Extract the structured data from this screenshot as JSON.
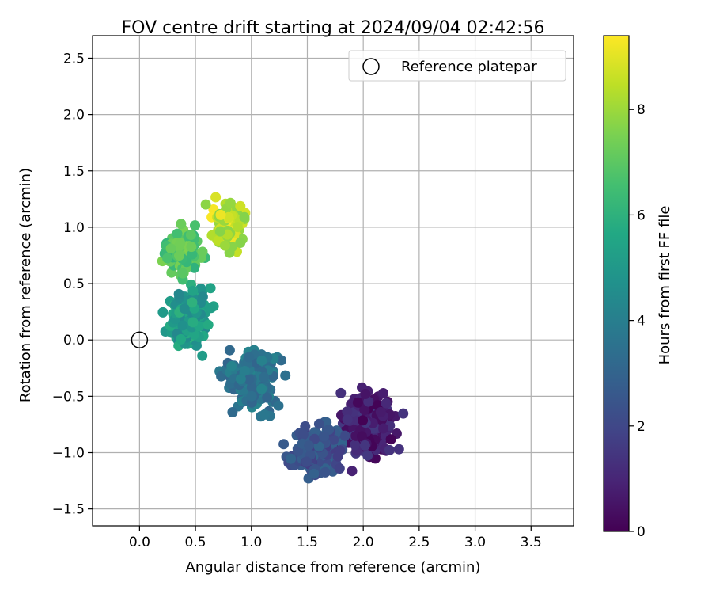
{
  "chart_data": {
    "type": "scatter",
    "title": "FOV centre drift starting at 2024/09/04 02:42:56",
    "xlabel": "Angular distance from reference (arcmin)",
    "ylabel": "Rotation from reference (arcmin)",
    "xlim": [
      -0.42,
      3.88
    ],
    "ylim": [
      -1.65,
      2.7
    ],
    "xticks": [
      0.0,
      0.5,
      1.0,
      1.5,
      2.0,
      2.5,
      3.0,
      3.5
    ],
    "yticks": [
      -1.5,
      -1.0,
      -0.5,
      0.0,
      0.5,
      1.0,
      1.5,
      2.0,
      2.5
    ],
    "xtick_labels": [
      "0.0",
      "0.5",
      "1.0",
      "1.5",
      "2.0",
      "2.5",
      "3.0",
      "3.5"
    ],
    "ytick_labels": [
      "−1.5",
      "−1.0",
      "−0.5",
      "0.0",
      "0.5",
      "1.0",
      "1.5",
      "2.0",
      "2.5"
    ],
    "grid": true,
    "legend": {
      "placement": "top-right",
      "entries": [
        "Reference platepar"
      ]
    },
    "reference_point": {
      "label": "Reference platepar",
      "x": 0.0,
      "y": 0.0,
      "marker": "open-circle"
    },
    "colorbar": {
      "label": "Hours from first FF file",
      "colormap": "viridis",
      "range": [
        0,
        9.4
      ],
      "ticks": [
        0,
        2,
        4,
        6,
        8
      ],
      "tick_labels": [
        "0",
        "2",
        "4",
        "6",
        "8"
      ]
    },
    "series": [
      {
        "color_variable": "hours",
        "clusters": [
          {
            "hours": [
              0.0,
              1.6
            ],
            "center": [
              2.05,
              -0.75
            ],
            "spread": [
              0.2,
              0.24
            ],
            "count": 210
          },
          {
            "hours": [
              1.6,
              3.0
            ],
            "center": [
              1.6,
              -0.98
            ],
            "spread": [
              0.2,
              0.2
            ],
            "count": 200
          },
          {
            "hours": [
              3.0,
              4.3
            ],
            "center": [
              1.0,
              -0.38
            ],
            "spread": [
              0.2,
              0.22
            ],
            "count": 200
          },
          {
            "hours": [
              4.3,
              6.0
            ],
            "center": [
              0.45,
              0.18
            ],
            "spread": [
              0.16,
              0.22
            ],
            "count": 160
          },
          {
            "hours": [
              6.0,
              7.6
            ],
            "center": [
              0.38,
              0.78
            ],
            "spread": [
              0.15,
              0.2
            ],
            "count": 110
          },
          {
            "hours": [
              7.6,
              9.4
            ],
            "center": [
              0.78,
              1.02
            ],
            "spread": [
              0.13,
              0.18
            ],
            "count": 90
          }
        ]
      }
    ]
  }
}
